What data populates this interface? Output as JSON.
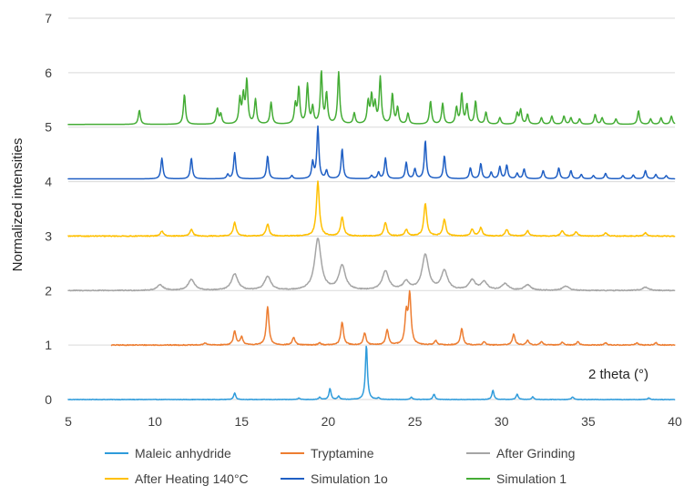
{
  "chart_data": {
    "type": "line",
    "ylabel": "Normalized intensities",
    "annotation": "2 theta (°)",
    "xlim": [
      5,
      40
    ],
    "ylim": [
      0,
      7
    ],
    "x_ticks": [
      5,
      10,
      15,
      20,
      25,
      30,
      35,
      40
    ],
    "y_ticks": [
      0,
      1,
      2,
      3,
      4,
      5,
      6,
      7
    ],
    "grid": "horizontal",
    "legend_position": "bottom",
    "series": [
      {
        "name": "Maleic anhydride",
        "color": "#2E9BDB",
        "x_start": 5,
        "x_end": 40,
        "baseline": 0.0,
        "noise": 0.004,
        "width": 0.07,
        "peaks": [
          [
            14.6,
            0.12
          ],
          [
            18.3,
            0.03
          ],
          [
            19.5,
            0.04
          ],
          [
            20.1,
            0.2
          ],
          [
            20.6,
            0.06
          ],
          [
            22.2,
            1.0
          ],
          [
            22.9,
            0.03
          ],
          [
            24.8,
            0.04
          ],
          [
            26.1,
            0.1
          ],
          [
            29.5,
            0.17
          ],
          [
            30.9,
            0.1
          ],
          [
            31.8,
            0.05
          ],
          [
            34.1,
            0.05
          ],
          [
            38.5,
            0.03
          ]
        ]
      },
      {
        "name": "Tryptamine",
        "color": "#ED7D31",
        "x_start": 7.5,
        "x_end": 40,
        "baseline": 1.0,
        "noise": 0.008,
        "width": 0.09,
        "peaks": [
          [
            12.9,
            0.04
          ],
          [
            14.6,
            0.25
          ],
          [
            15.0,
            0.15
          ],
          [
            16.5,
            0.7
          ],
          [
            18.0,
            0.14
          ],
          [
            19.5,
            0.04
          ],
          [
            20.8,
            0.42
          ],
          [
            22.1,
            0.22
          ],
          [
            23.4,
            0.28
          ],
          [
            24.5,
            0.55
          ],
          [
            24.7,
            0.9
          ],
          [
            26.2,
            0.08
          ],
          [
            27.7,
            0.3
          ],
          [
            29.0,
            0.06
          ],
          [
            30.7,
            0.2
          ],
          [
            31.5,
            0.08
          ],
          [
            32.3,
            0.06
          ],
          [
            33.5,
            0.05
          ],
          [
            34.4,
            0.06
          ],
          [
            36.0,
            0.04
          ],
          [
            37.8,
            0.04
          ],
          [
            38.9,
            0.04
          ]
        ]
      },
      {
        "name": "After Grinding",
        "color": "#A5A5A5",
        "x_start": 5,
        "x_end": 40,
        "baseline": 2.0,
        "noise": 0.008,
        "width": 0.22,
        "peaks": [
          [
            10.3,
            0.1
          ],
          [
            12.1,
            0.2
          ],
          [
            14.6,
            0.3
          ],
          [
            16.5,
            0.25
          ],
          [
            19.4,
            0.95
          ],
          [
            20.8,
            0.45
          ],
          [
            23.3,
            0.35
          ],
          [
            24.5,
            0.15
          ],
          [
            25.6,
            0.65
          ],
          [
            26.7,
            0.35
          ],
          [
            28.3,
            0.18
          ],
          [
            29.0,
            0.15
          ],
          [
            30.2,
            0.12
          ],
          [
            31.5,
            0.1
          ],
          [
            33.7,
            0.08
          ],
          [
            38.3,
            0.06
          ]
        ]
      },
      {
        "name": "After Heating 140°C",
        "color": "#FFC000",
        "x_start": 5,
        "x_end": 40,
        "baseline": 3.0,
        "noise": 0.008,
        "width": 0.1,
        "peaks": [
          [
            10.4,
            0.09
          ],
          [
            12.1,
            0.12
          ],
          [
            14.6,
            0.25
          ],
          [
            16.5,
            0.22
          ],
          [
            19.4,
            1.0
          ],
          [
            20.8,
            0.35
          ],
          [
            23.3,
            0.25
          ],
          [
            24.5,
            0.12
          ],
          [
            25.6,
            0.6
          ],
          [
            26.7,
            0.3
          ],
          [
            28.3,
            0.12
          ],
          [
            28.8,
            0.15
          ],
          [
            30.3,
            0.12
          ],
          [
            31.5,
            0.1
          ],
          [
            33.5,
            0.1
          ],
          [
            34.3,
            0.08
          ],
          [
            36.0,
            0.06
          ],
          [
            38.3,
            0.06
          ]
        ]
      },
      {
        "name": "Simulation 1o",
        "color": "#1F5FC4",
        "x_start": 5,
        "x_end": 40,
        "baseline": 4.05,
        "noise": 0.0,
        "width": 0.07,
        "peaks": [
          [
            10.4,
            0.38
          ],
          [
            12.1,
            0.38
          ],
          [
            14.2,
            0.08
          ],
          [
            14.6,
            0.48
          ],
          [
            16.5,
            0.42
          ],
          [
            17.9,
            0.06
          ],
          [
            19.1,
            0.3
          ],
          [
            19.4,
            0.95
          ],
          [
            19.9,
            0.15
          ],
          [
            20.8,
            0.55
          ],
          [
            22.5,
            0.06
          ],
          [
            22.9,
            0.12
          ],
          [
            23.3,
            0.38
          ],
          [
            24.5,
            0.3
          ],
          [
            25.0,
            0.18
          ],
          [
            25.6,
            0.7
          ],
          [
            26.7,
            0.42
          ],
          [
            28.2,
            0.2
          ],
          [
            28.8,
            0.28
          ],
          [
            29.4,
            0.12
          ],
          [
            29.9,
            0.22
          ],
          [
            30.3,
            0.25
          ],
          [
            30.9,
            0.1
          ],
          [
            31.3,
            0.18
          ],
          [
            32.4,
            0.15
          ],
          [
            33.3,
            0.2
          ],
          [
            34.0,
            0.15
          ],
          [
            34.6,
            0.08
          ],
          [
            35.3,
            0.06
          ],
          [
            36.0,
            0.1
          ],
          [
            37.0,
            0.06
          ],
          [
            37.6,
            0.07
          ],
          [
            38.3,
            0.15
          ],
          [
            38.9,
            0.08
          ],
          [
            39.5,
            0.06
          ]
        ]
      },
      {
        "name": "Simulation 1",
        "color": "#44AC35",
        "x_start": 5,
        "x_end": 40,
        "baseline": 5.05,
        "noise": 0.0,
        "width": 0.07,
        "peaks": [
          [
            9.1,
            0.26
          ],
          [
            11.7,
            0.55
          ],
          [
            13.6,
            0.28
          ],
          [
            13.8,
            0.18
          ],
          [
            14.9,
            0.45
          ],
          [
            15.1,
            0.5
          ],
          [
            15.3,
            0.78
          ],
          [
            15.8,
            0.45
          ],
          [
            16.7,
            0.4
          ],
          [
            18.1,
            0.35
          ],
          [
            18.3,
            0.65
          ],
          [
            18.8,
            0.72
          ],
          [
            19.1,
            0.3
          ],
          [
            19.6,
            0.95
          ],
          [
            19.9,
            0.55
          ],
          [
            20.6,
            0.95
          ],
          [
            21.5,
            0.2
          ],
          [
            22.3,
            0.4
          ],
          [
            22.5,
            0.5
          ],
          [
            22.7,
            0.35
          ],
          [
            23.0,
            0.85
          ],
          [
            23.7,
            0.55
          ],
          [
            24.0,
            0.3
          ],
          [
            24.6,
            0.2
          ],
          [
            25.9,
            0.42
          ],
          [
            26.6,
            0.38
          ],
          [
            27.4,
            0.3
          ],
          [
            27.7,
            0.55
          ],
          [
            28.0,
            0.35
          ],
          [
            28.5,
            0.42
          ],
          [
            29.1,
            0.22
          ],
          [
            29.9,
            0.12
          ],
          [
            30.9,
            0.2
          ],
          [
            31.1,
            0.26
          ],
          [
            31.5,
            0.18
          ],
          [
            32.3,
            0.12
          ],
          [
            32.9,
            0.15
          ],
          [
            33.6,
            0.15
          ],
          [
            34.0,
            0.12
          ],
          [
            34.5,
            0.1
          ],
          [
            35.4,
            0.18
          ],
          [
            35.8,
            0.12
          ],
          [
            36.6,
            0.1
          ],
          [
            37.9,
            0.25
          ],
          [
            38.6,
            0.1
          ],
          [
            39.2,
            0.12
          ],
          [
            39.8,
            0.15
          ]
        ]
      }
    ]
  }
}
